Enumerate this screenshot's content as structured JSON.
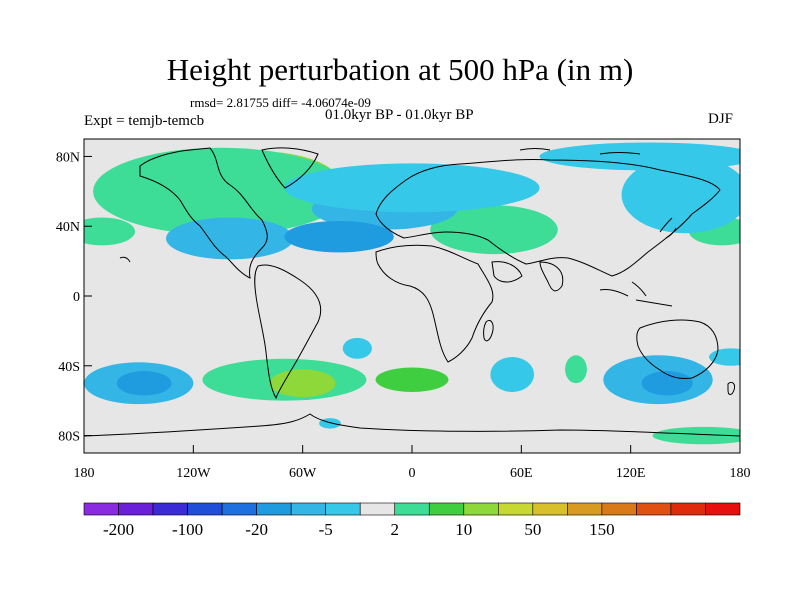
{
  "title": "Height perturbation at 500 hPa (in m)",
  "stats": "rmsd= 2.81755 diff= -4.06074e-09",
  "period": "01.0kyr BP - 01.0kyr BP",
  "experiment": "Expt = temjb-temcb",
  "season": "DJF",
  "map": {
    "background": "#e6e6e6",
    "lon_range": [
      -180,
      180
    ],
    "lat_range": [
      -90,
      90
    ],
    "x_ticks": [
      "180",
      "120W",
      "60W",
      "0",
      "60E",
      "120E",
      "180"
    ],
    "y_ticks": [
      "80N",
      "40N",
      "0",
      "40S",
      "80S"
    ]
  },
  "colorbar": {
    "colors": [
      "#8a2be2",
      "#6a1fd8",
      "#3a2bd6",
      "#1f4fd8",
      "#1e6fe0",
      "#1f9be0",
      "#33b5e5",
      "#36c8e8",
      "#e6e6e6",
      "#3ddc97",
      "#3fce3f",
      "#8ed83a",
      "#c8d832",
      "#d8c02a",
      "#d89a20",
      "#d87a18",
      "#e05010",
      "#e02a0c",
      "#e80f0f"
    ],
    "labels": [
      "-200",
      "-100",
      "-20",
      "-5",
      "2",
      "10",
      "50",
      "150"
    ],
    "label_boundaries": [
      1,
      3,
      5,
      7,
      9,
      11,
      13,
      15
    ]
  },
  "anomaly_fields": [
    {
      "lon": -85,
      "lat": 65,
      "rx": 45,
      "ry": 18,
      "value": 12,
      "color": "#8ed83a"
    },
    {
      "lon": -105,
      "lat": 60,
      "rx": 70,
      "ry": 25,
      "value": 5,
      "color": "#3ddc97"
    },
    {
      "lon": 45,
      "lat": 38,
      "rx": 35,
      "ry": 14,
      "value": 5,
      "color": "#3ddc97"
    },
    {
      "lon": -170,
      "lat": 37,
      "rx": 18,
      "ry": 8,
      "value": 4,
      "color": "#3ddc97"
    },
    {
      "lon": 170,
      "lat": 37,
      "rx": 18,
      "ry": 8,
      "value": 4,
      "color": "#3ddc97"
    },
    {
      "lon": -70,
      "lat": -48,
      "rx": 45,
      "ry": 12,
      "value": 6,
      "color": "#3ddc97"
    },
    {
      "lon": -60,
      "lat": -50,
      "rx": 18,
      "ry": 8,
      "value": 11,
      "color": "#8ed83a"
    },
    {
      "lon": 0,
      "lat": -48,
      "rx": 20,
      "ry": 7,
      "value": 8,
      "color": "#3fce3f"
    },
    {
      "lon": 90,
      "lat": -42,
      "rx": 6,
      "ry": 8,
      "value": 3,
      "color": "#3ddc97"
    },
    {
      "lon": 160,
      "lat": -80,
      "rx": 28,
      "ry": 5,
      "value": 3,
      "color": "#3ddc97"
    },
    {
      "lon": -15,
      "lat": 50,
      "rx": 40,
      "ry": 12,
      "value": -8,
      "color": "#33b5e5"
    },
    {
      "lon": 0,
      "lat": 62,
      "rx": 70,
      "ry": 14,
      "value": -6,
      "color": "#36c8e8"
    },
    {
      "lon": -100,
      "lat": 33,
      "rx": 35,
      "ry": 12,
      "value": -8,
      "color": "#33b5e5"
    },
    {
      "lon": -40,
      "lat": 34,
      "rx": 30,
      "ry": 9,
      "value": -12,
      "color": "#1f9be0"
    },
    {
      "lon": 150,
      "lat": 58,
      "rx": 35,
      "ry": 22,
      "value": -6,
      "color": "#36c8e8"
    },
    {
      "lon": 130,
      "lat": 80,
      "rx": 60,
      "ry": 8,
      "value": -5,
      "color": "#36c8e8"
    },
    {
      "lon": -150,
      "lat": -50,
      "rx": 30,
      "ry": 12,
      "value": -8,
      "color": "#33b5e5"
    },
    {
      "lon": -147,
      "lat": -50,
      "rx": 15,
      "ry": 7,
      "value": -14,
      "color": "#1f9be0"
    },
    {
      "lon": 135,
      "lat": -48,
      "rx": 30,
      "ry": 14,
      "value": -8,
      "color": "#33b5e5"
    },
    {
      "lon": 140,
      "lat": -50,
      "rx": 14,
      "ry": 7,
      "value": -14,
      "color": "#1f9be0"
    },
    {
      "lon": 55,
      "lat": -45,
      "rx": 12,
      "ry": 10,
      "value": -6,
      "color": "#36c8e8"
    },
    {
      "lon": -30,
      "lat": -30,
      "rx": 8,
      "ry": 6,
      "value": -6,
      "color": "#36c8e8"
    },
    {
      "lon": 175,
      "lat": -35,
      "rx": 12,
      "ry": 5,
      "value": -5,
      "color": "#36c8e8"
    },
    {
      "lon": -45,
      "lat": -73,
      "rx": 6,
      "ry": 3,
      "value": -5,
      "color": "#36c8e8"
    }
  ]
}
